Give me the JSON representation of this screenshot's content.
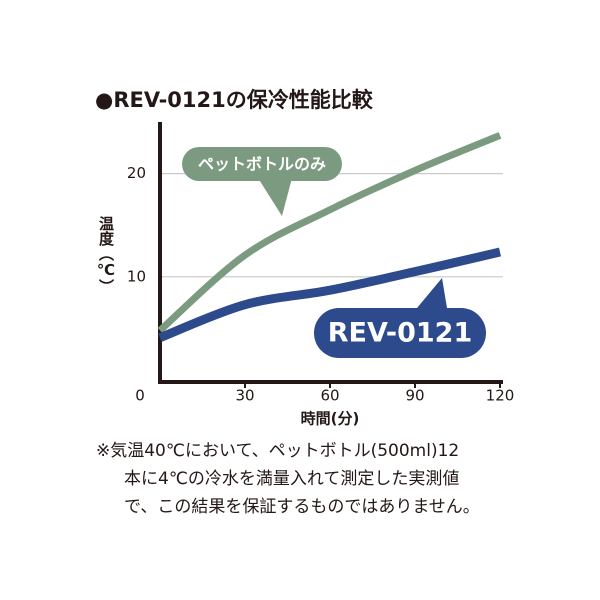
{
  "chart_data": {
    "type": "line",
    "title": "●REV-0121の保冷性能比較",
    "xlabel": "時間(分)",
    "ylabel": "温度（℃）",
    "x": [
      0,
      30,
      60,
      90,
      120
    ],
    "series": [
      {
        "name": "ペットボトルのみ",
        "color": "#7b9a7f",
        "values": [
          4.8,
          12.1,
          16.5,
          20.3,
          23.7
        ]
      },
      {
        "name": "REV-0121",
        "color": "#2c4a8c",
        "values": [
          4.1,
          7.3,
          8.7,
          10.5,
          12.4
        ]
      }
    ],
    "xlim": [
      0,
      120
    ],
    "xticks": [
      0,
      30,
      60,
      90,
      120
    ],
    "ylim": [
      0,
      25
    ],
    "yticks": [
      10,
      20
    ],
    "grid": true,
    "note": [
      "※気温40℃において、ペットボトル(500ml)12",
      "本に4℃の冷水を満量入れて測定した実測値",
      "で、この結果を保証するものではありません。"
    ]
  }
}
